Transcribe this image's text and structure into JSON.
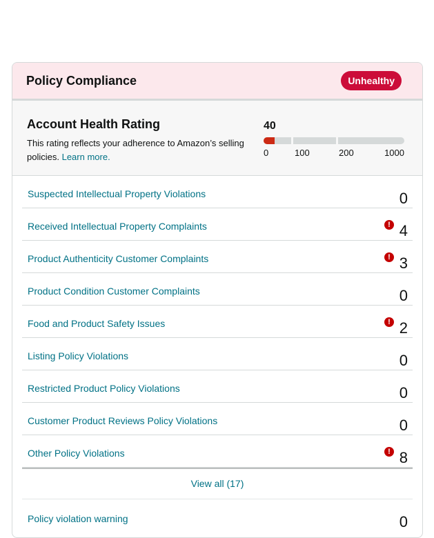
{
  "header": {
    "title": "Policy Compliance",
    "status_badge": "Unhealthy"
  },
  "account_health": {
    "title": "Account Health Rating",
    "description": "This rating reflects your adherence to Amazon’s selling policies.",
    "learn_more": "Learn more.",
    "value": "40",
    "value_number": 40,
    "ticks": [
      "0",
      "100",
      "200",
      "1000"
    ],
    "fill_color": "#cc2a14"
  },
  "violations": [
    {
      "label": "Suspected Intellectual Property Violations",
      "count": "0",
      "alert": false
    },
    {
      "label": "Received Intellectual Property Complaints",
      "count": "4",
      "alert": true
    },
    {
      "label": "Product Authenticity Customer Complaints",
      "count": "3",
      "alert": true
    },
    {
      "label": "Product Condition Customer Complaints",
      "count": "0",
      "alert": false
    },
    {
      "label": "Food and Product Safety Issues",
      "count": "2",
      "alert": true
    },
    {
      "label": "Listing Policy Violations",
      "count": "0",
      "alert": false
    },
    {
      "label": "Restricted Product Policy Violations",
      "count": "0",
      "alert": false
    },
    {
      "label": "Customer Product Reviews Policy Violations",
      "count": "0",
      "alert": false
    },
    {
      "label": "Other Policy Violations",
      "count": "8",
      "alert": true
    }
  ],
  "view_all": "View all (17)",
  "warning": {
    "label": "Policy violation warning",
    "count": "0"
  },
  "alert_icon_glyph": "!",
  "colors": {
    "accent_link": "#007185",
    "alert": "#c40000",
    "badge": "#cc0c39",
    "header_bg": "#fce8ec"
  }
}
